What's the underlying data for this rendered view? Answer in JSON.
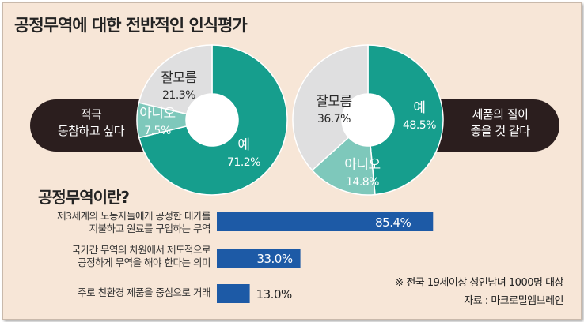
{
  "title": "공정무역에 대한 전반적인 인식평가",
  "chart_data": [
    {
      "type": "pie",
      "labels": [
        "예",
        "아니오",
        "잘모름"
      ],
      "values": [
        71.2,
        7.5,
        21.3
      ],
      "value_labels": [
        "71.2%",
        "7.5%",
        "21.3%"
      ],
      "caption": [
        "적극",
        "동참하고 싶다"
      ],
      "colors": [
        "#169e8d",
        "#7ec8bb",
        "#dfdfe0"
      ]
    },
    {
      "type": "pie",
      "labels": [
        "예",
        "아니오",
        "잘모름"
      ],
      "values": [
        48.5,
        14.8,
        36.7
      ],
      "value_labels": [
        "48.5%",
        "14.8%",
        "36.7%"
      ],
      "caption": [
        "제품의 질이",
        "좋을 것 같다"
      ],
      "colors": [
        "#169e8d",
        "#7ec8bb",
        "#dfdfe0"
      ]
    },
    {
      "type": "bar",
      "orientation": "horizontal",
      "title": "공정무역이란?",
      "categories": [
        [
          "제3세계의 노동자들에게 공정한 대가를",
          "지불하고 원료를 구입하는 무역"
        ],
        [
          "국가간 무역의 차원에서 제도적으로",
          "공정하게 무역을 해야 한다는 의미"
        ],
        [
          "주로 친환경 제품을 중심으로 거래"
        ]
      ],
      "values": [
        85.4,
        33.0,
        13.0
      ],
      "value_labels": [
        "85.4%",
        "33.0%",
        "13.0%"
      ],
      "bar_color": "#1d5aa6"
    }
  ],
  "notes": {
    "sample": "※ 전국 19세이상 성인남녀 1000명 대상",
    "source": "자료 : 마크로밀엠브레인"
  }
}
